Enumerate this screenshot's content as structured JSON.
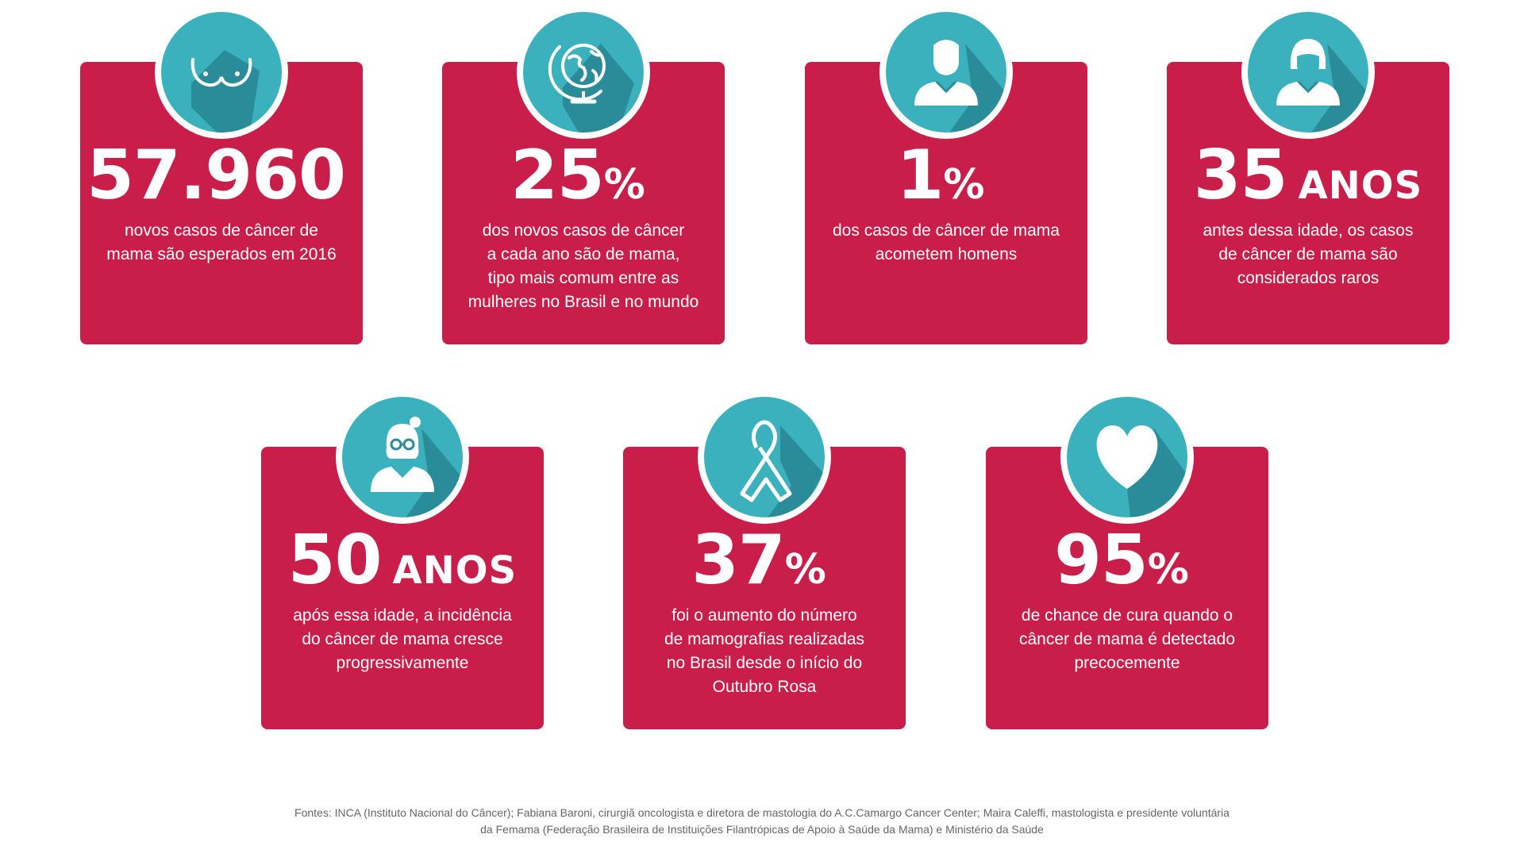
{
  "colors": {
    "card": "#c81e49",
    "circle": "#3bb1be",
    "shadow": "#2b8c99",
    "icon": "#ffffff"
  },
  "cards": [
    {
      "icon": "breast-icon",
      "value": "57.960",
      "suffix": "",
      "word": "",
      "lines": [
        "novos casos de câncer de",
        "mama são esperados em 2016"
      ]
    },
    {
      "icon": "globe-icon",
      "value": "25",
      "suffix": "%",
      "word": "",
      "lines": [
        "dos novos casos de câncer",
        "a cada ano são de mama,",
        "tipo mais comum entre as",
        "mulheres no Brasil e no mundo"
      ]
    },
    {
      "icon": "man-icon",
      "value": "1",
      "suffix": "%",
      "word": "",
      "lines": [
        "dos casos de câncer de mama",
        "acometem homens"
      ]
    },
    {
      "icon": "woman-icon",
      "value": "35",
      "suffix": "",
      "word": "ANOS",
      "lines": [
        "antes dessa idade, os casos",
        "de câncer de mama são",
        "considerados raros"
      ]
    },
    {
      "icon": "elderly-woman-icon",
      "value": "50",
      "suffix": "",
      "word": "ANOS",
      "lines": [
        "após essa idade, a incidência",
        "do câncer de mama cresce",
        "progressivamente"
      ]
    },
    {
      "icon": "ribbon-icon",
      "value": "37",
      "suffix": "%",
      "word": "",
      "lines": [
        "foi o aumento do número",
        "de mamografias realizadas",
        "no Brasil desde o início do",
        "Outubro Rosa"
      ]
    },
    {
      "icon": "heart-icon",
      "value": "95",
      "suffix": "%",
      "word": "",
      "lines": [
        "de chance de cura quando o",
        "câncer de mama é detectado",
        "precocemente"
      ]
    }
  ],
  "footer": [
    "Fontes: INCA (Instituto Nacional do Câncer); Fabiana Baroni, cirurgiã oncologista e diretora de mastologia do A.C.Camargo Cancer Center; Maira Caleffi, mastologista e presidente voluntária",
    "da Femama (Federação Brasileira de Instituições Filantrópicas de Apoio à Saúde da Mama) e Ministério da Saúde"
  ]
}
